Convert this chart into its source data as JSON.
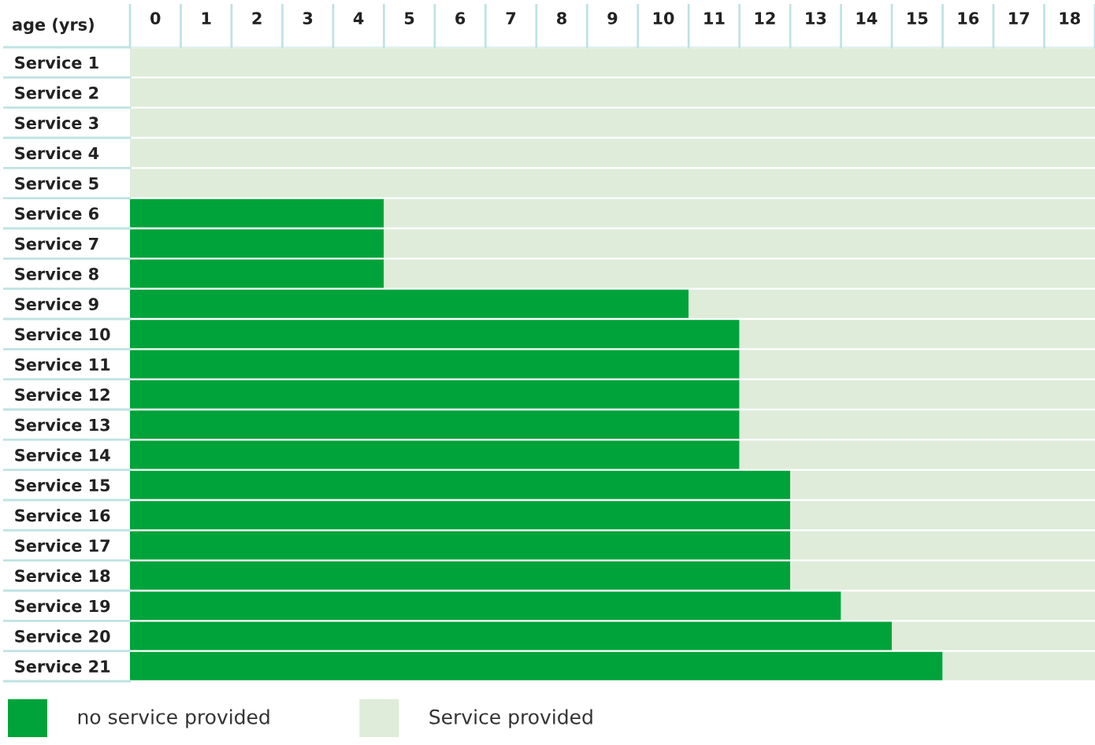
{
  "chart_data": {
    "type": "bar",
    "orientation": "horizontal",
    "stacked": true,
    "xlabel": "age (yrs)",
    "categories": [
      "Service 1",
      "Service 2",
      "Service 3",
      "Service 4",
      "Service 5",
      "Service 6",
      "Service 7",
      "Service 8",
      "Service 9",
      "Service 10",
      "Service 11",
      "Service 12",
      "Service 13",
      "Service 14",
      "Service 15",
      "Service 16",
      "Service 17",
      "Service 18",
      "Service 19",
      "Service 20",
      "Service 21"
    ],
    "series": [
      {
        "name": "no service provided",
        "color": "#00a33a",
        "values": [
          0,
          0,
          0,
          0,
          0,
          5,
          5,
          5,
          11,
          12,
          12,
          12,
          12,
          12,
          13,
          13,
          13,
          13,
          14,
          15,
          16
        ]
      },
      {
        "name": "Service provided",
        "color": "#deecd9",
        "values": [
          19,
          19,
          19,
          19,
          19,
          14,
          14,
          14,
          8,
          7,
          7,
          7,
          7,
          7,
          6,
          6,
          6,
          6,
          5,
          4,
          3
        ]
      }
    ],
    "xlim": [
      0,
      19
    ],
    "xticks": [
      {
        "value": 0.5,
        "label": "0"
      },
      {
        "value": 1.5,
        "label": "1"
      },
      {
        "value": 2.5,
        "label": "2"
      },
      {
        "value": 3.5,
        "label": "3"
      },
      {
        "value": 4.5,
        "label": "4"
      },
      {
        "value": 5.5,
        "label": "5"
      },
      {
        "value": 6.5,
        "label": "6"
      },
      {
        "value": 7.5,
        "label": "7"
      },
      {
        "value": 8.5,
        "label": "8"
      },
      {
        "value": 9.5,
        "label": "9"
      },
      {
        "value": 10.5,
        "label": "10"
      },
      {
        "value": 11.5,
        "label": "11"
      },
      {
        "value": 12.5,
        "label": "12"
      },
      {
        "value": 13.5,
        "label": "13"
      },
      {
        "value": 14.5,
        "label": "14"
      },
      {
        "value": 15.5,
        "label": "15"
      },
      {
        "value": 16.5,
        "label": "16"
      },
      {
        "value": 17.5,
        "label": "17"
      },
      {
        "value": 18.5,
        "label": "18"
      }
    ],
    "legend": "bottom left",
    "grid": false
  }
}
